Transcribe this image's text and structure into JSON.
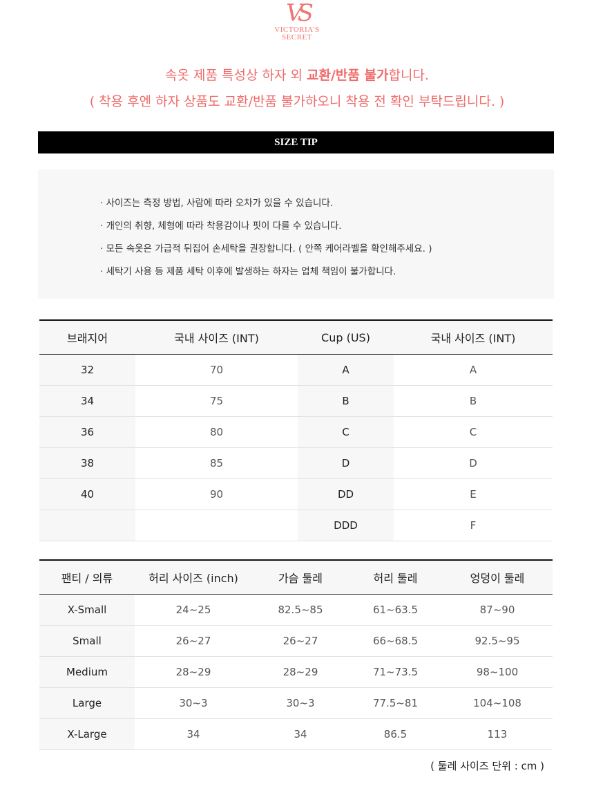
{
  "logo": {
    "text": "VICTORIA'S SECRET",
    "line1": "Victoria's",
    "line2": "Secret",
    "color": "#f07575"
  },
  "notice": {
    "line1_pre": "속옷 제품 특성상 하자 외 ",
    "line1_bold": "교환/반품 불가",
    "line1_post": "합니다.",
    "line2": "( 착용 후엔 하자 상품도 교환/반품 불가하오니 착용 전 확인 부탁드립니다. )",
    "color": "#f06b6b"
  },
  "size_tip": {
    "title": "SIZE TIP",
    "items": [
      "사이즈는 측정 방법, 사람에 따라 오차가 있을 수 있습니다.",
      "개인의 취향, 체형에 따라 착용감이나 핏이 다를 수 있습니다.",
      "모든 속옷은 가급적 뒤집어 손세탁을 권장합니다. ( 안쪽 케어라벨을 확인해주세요. )",
      "세탁기 사용 등 제품 세탁 이후에 발생하는 하자는 업체 책임이 불가합니다."
    ]
  },
  "bra_table": {
    "headers": [
      "브래지어",
      "국내 사이즈 (INT)",
      "Cup  (US)",
      "국내 사이즈 (INT)"
    ],
    "rows": [
      [
        "32",
        "70",
        "A",
        "A"
      ],
      [
        "34",
        "75",
        "B",
        "B"
      ],
      [
        "36",
        "80",
        "C",
        "C"
      ],
      [
        "38",
        "85",
        "D",
        "D"
      ],
      [
        "40",
        "90",
        "DD",
        "E"
      ],
      [
        "",
        "",
        "DDD",
        "F"
      ]
    ]
  },
  "panty_table": {
    "headers": [
      "팬티 / 의류",
      "허리 사이즈 (inch)",
      "가슴 둘레",
      "허리 둘레",
      "엉덩이 둘레"
    ],
    "rows": [
      [
        "X-Small",
        "24~25",
        "82.5~85",
        "61~63.5",
        "87~90"
      ],
      [
        "Small",
        "26~27",
        "26~27",
        "66~68.5",
        "92.5~95"
      ],
      [
        "Medium",
        "28~29",
        "28~29",
        "71~73.5",
        "98~100"
      ],
      [
        "Large",
        "30~3",
        "30~3",
        "77.5~81",
        "104~108"
      ],
      [
        "X-Large",
        "34",
        "34",
        "86.5",
        "113"
      ]
    ]
  },
  "unit_note": "( 둘레 사이즈 단위 : cm )"
}
